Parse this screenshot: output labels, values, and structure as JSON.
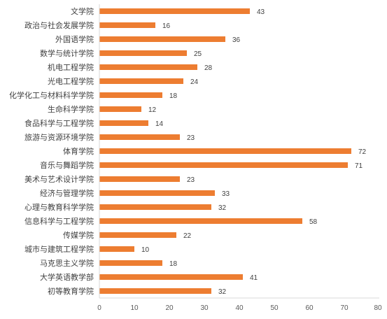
{
  "chart_data": {
    "type": "bar",
    "orientation": "horizontal",
    "categories": [
      "文学院",
      "政治与社会发展学院",
      "外国语学院",
      "数学与统计学院",
      "机电工程学院",
      "光电工程学院",
      "化学化工与材料科学学院",
      "生命科学学院",
      "食品科学与工程学院",
      "旅游与资源环境学院",
      "体育学院",
      "音乐与舞蹈学院",
      "美术与艺术设计学院",
      "经济与管理学院",
      "心理与教育科学学院",
      "信息科学与工程学院",
      "传媒学院",
      "城市与建筑工程学院",
      "马克思主义学院",
      "大学英语教学部",
      "初等教育学院"
    ],
    "values": [
      43,
      16,
      36,
      25,
      28,
      24,
      18,
      12,
      14,
      23,
      72,
      71,
      23,
      33,
      32,
      58,
      22,
      10,
      18,
      41,
      32
    ],
    "xlim": [
      0,
      80
    ],
    "ticks": [
      0,
      10,
      20,
      30,
      40,
      50,
      60,
      70,
      80
    ],
    "tick_labels": [
      "0",
      "10",
      "20",
      "30",
      "40",
      "50",
      "60",
      "70",
      "80"
    ],
    "bar_color": "#ED7D31",
    "grid": false,
    "legend": "none",
    "data_labels": true
  }
}
